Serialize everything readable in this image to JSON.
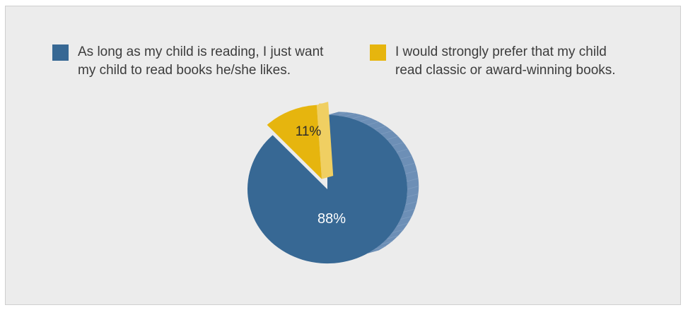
{
  "chart_data": {
    "type": "pie",
    "title": "",
    "series": [
      {
        "name": "As long as my child is reading, I just want my child to read books he/she likes.",
        "label_lines": [
          "As long as my child is reading, I just want",
          "my child to read books he/she likes."
        ],
        "value": 88,
        "value_label": "88%",
        "color": "#376894",
        "side_color": "#6d8fb6"
      },
      {
        "name": "I would strongly prefer that my child read classic or award-winning books.",
        "label_lines": [
          "I would strongly prefer that my child",
          "read classic or award-winning books."
        ],
        "value": 11,
        "value_label": "11%",
        "color": "#e6b50e",
        "side_color": "#f0cf62"
      }
    ],
    "remaining_value": 1,
    "remaining_color": "#f0cf62",
    "legend_position": "top",
    "style": "3d-exploded"
  }
}
